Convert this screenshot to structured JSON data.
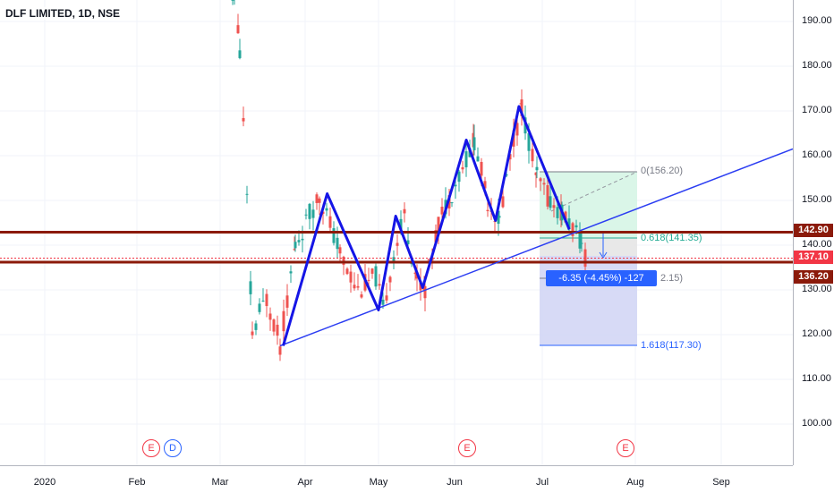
{
  "header": {
    "symbol_title": "DLF LIMITED, 1D, NSE"
  },
  "colors": {
    "up_candle": "#26a69a",
    "down_candle": "#ef5350",
    "pattern_line": "#1515e6",
    "trend_line": "#2b3df2",
    "horizontal_level": "#8b1a0a",
    "current_price": "#f23645",
    "fib_green_fill": "#d6f5e6",
    "fib_blue_fill": "#d0d4f5",
    "fib_gray_fill": "#e6e6e6"
  },
  "price_axis": {
    "ticks": [
      "190.00",
      "180.00",
      "170.00",
      "160.00",
      "150.00",
      "140.00",
      "130.00",
      "120.00",
      "110.00",
      "100.00"
    ]
  },
  "time_axis": {
    "ticks": [
      "2020",
      "Feb",
      "Mar",
      "Apr",
      "May",
      "Jun",
      "Jul",
      "Aug",
      "Sep"
    ]
  },
  "price_badges": {
    "upper_level": "142.90",
    "current": "137.10",
    "lower_level": "136.20"
  },
  "fibonacci": {
    "level_0": "0(156.20)",
    "level_0618": "0.618(141.35)",
    "level_partial": "2.15)",
    "level_1618": "1.618(117.30)"
  },
  "measure": {
    "text": "-6.35 (-4.45%) -127"
  },
  "events": [
    {
      "letter": "E",
      "kind": "earnings"
    },
    {
      "letter": "D",
      "kind": "dividend"
    },
    {
      "letter": "E",
      "kind": "earnings"
    },
    {
      "letter": "E",
      "kind": "earnings"
    }
  ],
  "chart_data": {
    "type": "candlestick",
    "price_range": [
      90,
      194
    ],
    "series": [
      {
        "name": "zigzag-pattern",
        "points": [
          [
            117.5,
            "2020-03-24"
          ],
          [
            151.5,
            "2020-04-10"
          ],
          [
            125.5,
            "2020-05-01"
          ],
          [
            146.5,
            "2020-05-08"
          ],
          [
            130.5,
            "2020-05-19"
          ],
          [
            163.5,
            "2020-06-05"
          ],
          [
            145.5,
            "2020-06-15"
          ],
          [
            171.0,
            "2020-06-23"
          ],
          [
            143.5,
            "2020-07-10"
          ]
        ]
      }
    ],
    "horizontal_levels": [
      142.9,
      136.2
    ],
    "current_price": 137.1
  }
}
